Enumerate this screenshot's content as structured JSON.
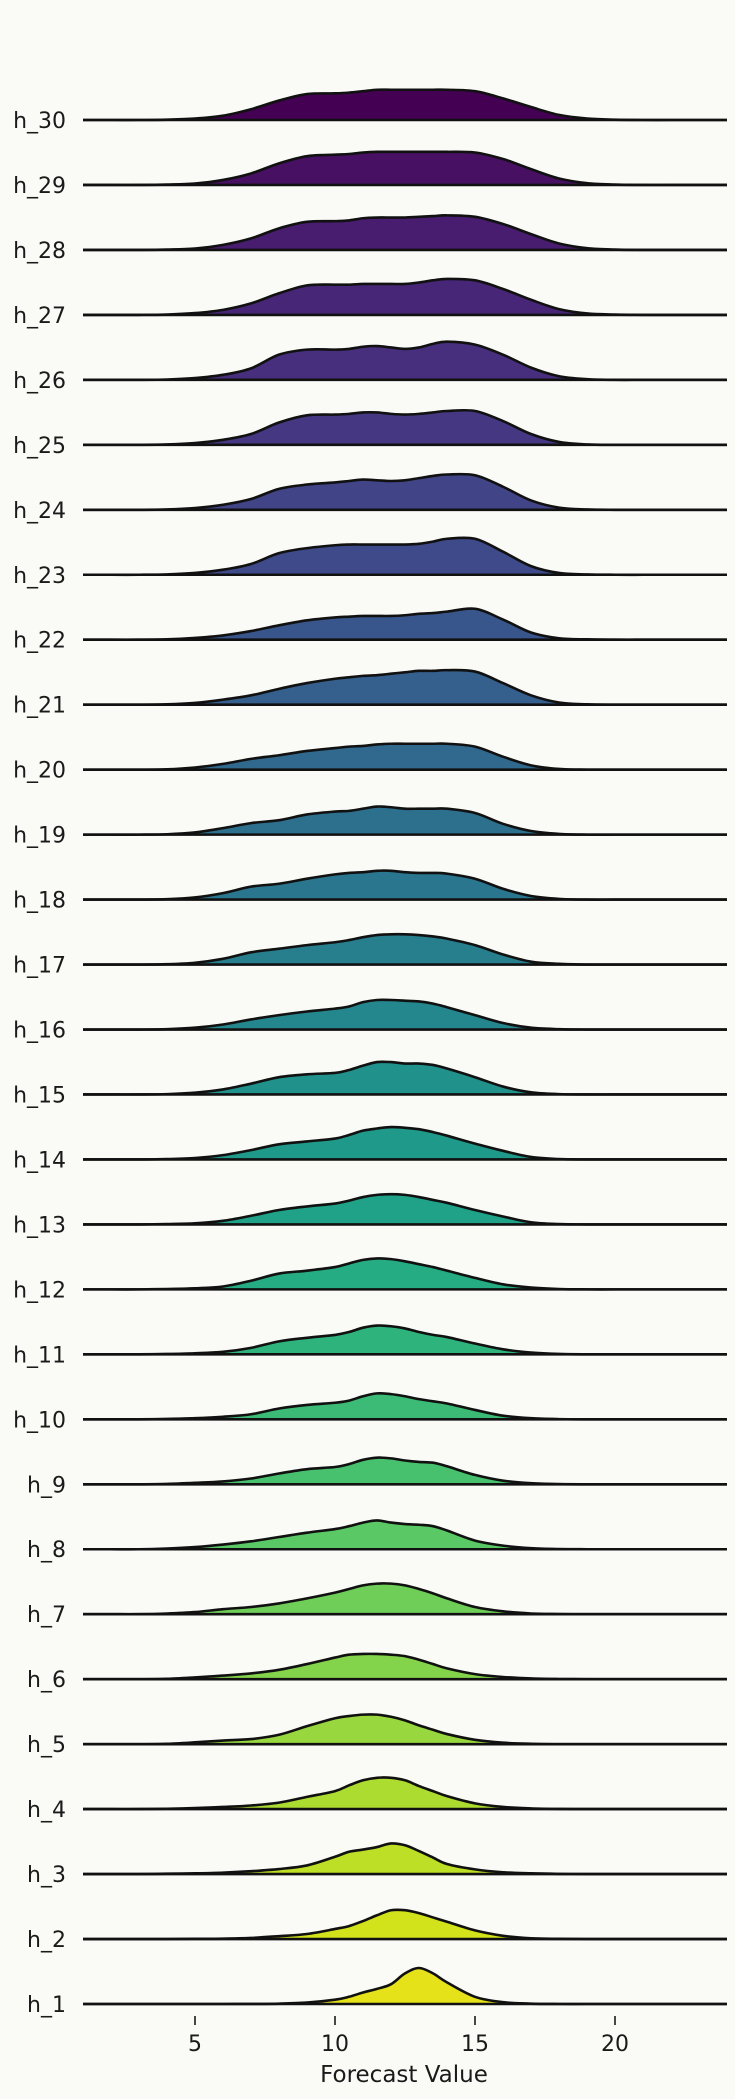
{
  "chart_data": {
    "type": "ridgeline",
    "title": "",
    "xlabel": "Forecast Value",
    "ylabel": "",
    "xlim": [
      1,
      24
    ],
    "x_ticks": [
      5,
      10,
      15,
      20
    ],
    "grid": false,
    "legend": "none",
    "colormap": "viridis",
    "x": [
      1,
      2,
      3,
      4,
      5,
      6,
      7,
      8,
      9,
      10,
      10.5,
      11,
      11.5,
      12,
      12.5,
      13,
      13.5,
      14,
      15,
      16,
      17,
      18,
      19,
      20,
      21,
      22,
      23,
      24
    ],
    "series": [
      {
        "name": "h_1",
        "color": "#e6e21a",
        "values": [
          0,
          0,
          0,
          0,
          0,
          0,
          0.002,
          0.01,
          0.04,
          0.12,
          0.2,
          0.32,
          0.42,
          0.55,
          0.85,
          1.0,
          0.85,
          0.6,
          0.2,
          0.05,
          0.01,
          0,
          0,
          0,
          0,
          0,
          0,
          0
        ]
      },
      {
        "name": "h_2",
        "color": "#d2e21b",
        "values": [
          0,
          0,
          0,
          0,
          0.005,
          0.01,
          0.03,
          0.08,
          0.14,
          0.28,
          0.36,
          0.5,
          0.66,
          0.8,
          0.8,
          0.72,
          0.6,
          0.48,
          0.24,
          0.09,
          0.02,
          0.005,
          0,
          0,
          0,
          0,
          0,
          0
        ]
      },
      {
        "name": "h_3",
        "color": "#bddf26",
        "values": [
          0,
          0,
          0,
          0.01,
          0.02,
          0.04,
          0.08,
          0.14,
          0.24,
          0.48,
          0.62,
          0.68,
          0.75,
          0.85,
          0.8,
          0.64,
          0.46,
          0.28,
          0.13,
          0.05,
          0.02,
          0.005,
          0,
          0,
          0,
          0,
          0,
          0
        ]
      },
      {
        "name": "h_4",
        "color": "#addc30",
        "values": [
          0,
          0,
          0,
          0.01,
          0.03,
          0.06,
          0.1,
          0.18,
          0.34,
          0.5,
          0.66,
          0.8,
          0.87,
          0.87,
          0.8,
          0.64,
          0.5,
          0.36,
          0.16,
          0.06,
          0.02,
          0.005,
          0,
          0,
          0,
          0,
          0,
          0
        ]
      },
      {
        "name": "h_5",
        "color": "#98d83e",
        "values": [
          0,
          0,
          0,
          0.01,
          0.05,
          0.1,
          0.14,
          0.26,
          0.5,
          0.72,
          0.78,
          0.82,
          0.82,
          0.76,
          0.66,
          0.52,
          0.4,
          0.28,
          0.12,
          0.04,
          0.01,
          0,
          0,
          0,
          0,
          0,
          0,
          0
        ]
      },
      {
        "name": "h_6",
        "color": "#84d44b",
        "values": [
          0,
          0,
          0,
          0.01,
          0.05,
          0.1,
          0.16,
          0.26,
          0.42,
          0.6,
          0.68,
          0.7,
          0.7,
          0.68,
          0.64,
          0.54,
          0.42,
          0.3,
          0.14,
          0.06,
          0.02,
          0.005,
          0,
          0,
          0,
          0,
          0,
          0
        ]
      },
      {
        "name": "h_7",
        "color": "#6ece58",
        "values": [
          0,
          0,
          0,
          0.02,
          0.06,
          0.14,
          0.2,
          0.3,
          0.44,
          0.6,
          0.7,
          0.8,
          0.85,
          0.85,
          0.8,
          0.7,
          0.58,
          0.44,
          0.2,
          0.08,
          0.02,
          0.005,
          0,
          0,
          0,
          0,
          0,
          0
        ]
      },
      {
        "name": "h_8",
        "color": "#5ac864",
        "values": [
          0,
          0,
          0,
          0.02,
          0.06,
          0.13,
          0.22,
          0.34,
          0.46,
          0.56,
          0.64,
          0.74,
          0.8,
          0.74,
          0.7,
          0.68,
          0.64,
          0.52,
          0.24,
          0.1,
          0.03,
          0.005,
          0,
          0,
          0,
          0,
          0,
          0
        ]
      },
      {
        "name": "h_9",
        "color": "#48c16e",
        "values": [
          0,
          0,
          0,
          0.01,
          0.04,
          0.08,
          0.16,
          0.3,
          0.42,
          0.48,
          0.56,
          0.68,
          0.74,
          0.72,
          0.66,
          0.62,
          0.6,
          0.5,
          0.26,
          0.1,
          0.03,
          0.005,
          0,
          0,
          0,
          0,
          0,
          0
        ]
      },
      {
        "name": "h_10",
        "color": "#3bbb75",
        "values": [
          0,
          0,
          0,
          0.01,
          0.03,
          0.07,
          0.14,
          0.3,
          0.4,
          0.46,
          0.52,
          0.64,
          0.72,
          0.7,
          0.64,
          0.56,
          0.5,
          0.44,
          0.26,
          0.1,
          0.03,
          0.005,
          0,
          0,
          0,
          0,
          0,
          0
        ]
      },
      {
        "name": "h_11",
        "color": "#2eb37c",
        "values": [
          0,
          0,
          0,
          0.01,
          0.03,
          0.07,
          0.18,
          0.36,
          0.46,
          0.54,
          0.62,
          0.74,
          0.8,
          0.78,
          0.72,
          0.62,
          0.54,
          0.48,
          0.3,
          0.14,
          0.05,
          0.01,
          0,
          0,
          0,
          0,
          0,
          0
        ]
      },
      {
        "name": "h_12",
        "color": "#25ac82",
        "values": [
          0,
          0,
          0,
          0.01,
          0.03,
          0.08,
          0.24,
          0.44,
          0.52,
          0.62,
          0.72,
          0.82,
          0.86,
          0.84,
          0.78,
          0.7,
          0.62,
          0.52,
          0.32,
          0.14,
          0.05,
          0.01,
          0,
          0,
          0,
          0,
          0,
          0
        ]
      },
      {
        "name": "h_13",
        "color": "#1fa287",
        "values": [
          0,
          0,
          0,
          0.01,
          0.03,
          0.1,
          0.24,
          0.4,
          0.5,
          0.58,
          0.66,
          0.76,
          0.82,
          0.84,
          0.82,
          0.76,
          0.68,
          0.6,
          0.4,
          0.22,
          0.06,
          0.01,
          0,
          0,
          0,
          0,
          0,
          0
        ]
      },
      {
        "name": "h_14",
        "color": "#1f9a8a",
        "values": [
          0,
          0,
          0,
          0.01,
          0.04,
          0.12,
          0.26,
          0.42,
          0.5,
          0.58,
          0.68,
          0.8,
          0.86,
          0.9,
          0.88,
          0.84,
          0.76,
          0.66,
          0.44,
          0.24,
          0.07,
          0.01,
          0,
          0,
          0,
          0,
          0,
          0
        ]
      },
      {
        "name": "h_15",
        "color": "#21918c",
        "values": [
          0,
          0,
          0,
          0.01,
          0.05,
          0.14,
          0.3,
          0.48,
          0.56,
          0.6,
          0.68,
          0.8,
          0.9,
          0.9,
          0.86,
          0.86,
          0.82,
          0.72,
          0.48,
          0.22,
          0.06,
          0.01,
          0,
          0,
          0,
          0,
          0,
          0
        ]
      },
      {
        "name": "h_16",
        "color": "#24878e",
        "values": [
          0,
          0,
          0,
          0.01,
          0.05,
          0.14,
          0.28,
          0.4,
          0.5,
          0.58,
          0.64,
          0.76,
          0.82,
          0.82,
          0.8,
          0.78,
          0.72,
          0.62,
          0.4,
          0.18,
          0.05,
          0.01,
          0,
          0,
          0,
          0,
          0,
          0
        ]
      },
      {
        "name": "h_17",
        "color": "#277f8e",
        "values": [
          0,
          0,
          0,
          0.01,
          0.05,
          0.16,
          0.34,
          0.44,
          0.54,
          0.62,
          0.68,
          0.76,
          0.82,
          0.84,
          0.84,
          0.82,
          0.78,
          0.72,
          0.54,
          0.28,
          0.08,
          0.02,
          0,
          0,
          0,
          0,
          0,
          0
        ]
      },
      {
        "name": "h_18",
        "color": "#2a768e",
        "values": [
          0,
          0,
          0,
          0.01,
          0.06,
          0.18,
          0.36,
          0.44,
          0.58,
          0.7,
          0.74,
          0.76,
          0.8,
          0.8,
          0.76,
          0.74,
          0.74,
          0.72,
          0.58,
          0.3,
          0.1,
          0.02,
          0,
          0,
          0,
          0,
          0,
          0
        ]
      },
      {
        "name": "h_19",
        "color": "#2d708e",
        "values": [
          0,
          0,
          0,
          0.01,
          0.06,
          0.18,
          0.32,
          0.4,
          0.56,
          0.64,
          0.66,
          0.72,
          0.78,
          0.76,
          0.72,
          0.72,
          0.72,
          0.72,
          0.6,
          0.3,
          0.1,
          0.02,
          0,
          0,
          0,
          0,
          0,
          0
        ]
      },
      {
        "name": "h_20",
        "color": "#31688e",
        "values": [
          0,
          0,
          0,
          0.01,
          0.06,
          0.16,
          0.3,
          0.4,
          0.52,
          0.6,
          0.64,
          0.66,
          0.7,
          0.72,
          0.72,
          0.72,
          0.72,
          0.72,
          0.64,
          0.36,
          0.12,
          0.02,
          0,
          0,
          0,
          0,
          0,
          0
        ]
      },
      {
        "name": "h_21",
        "color": "#355f8d",
        "values": [
          0,
          0,
          0,
          0.01,
          0.05,
          0.14,
          0.26,
          0.44,
          0.6,
          0.72,
          0.76,
          0.8,
          0.82,
          0.86,
          0.9,
          0.94,
          0.94,
          0.96,
          0.92,
          0.6,
          0.26,
          0.06,
          0.01,
          0,
          0,
          0,
          0,
          0
        ]
      },
      {
        "name": "h_22",
        "color": "#39568c",
        "values": [
          0,
          0,
          0,
          0.01,
          0.05,
          0.12,
          0.24,
          0.4,
          0.54,
          0.62,
          0.64,
          0.66,
          0.66,
          0.66,
          0.68,
          0.72,
          0.74,
          0.78,
          0.86,
          0.56,
          0.2,
          0.04,
          0.01,
          0,
          0,
          0,
          0,
          0
        ]
      },
      {
        "name": "h_23",
        "color": "#3e4a89",
        "values": [
          0,
          0,
          0,
          0.01,
          0.05,
          0.14,
          0.3,
          0.6,
          0.74,
          0.82,
          0.84,
          0.84,
          0.84,
          0.84,
          0.84,
          0.86,
          0.92,
          1.0,
          1.0,
          0.64,
          0.24,
          0.05,
          0.01,
          0,
          0,
          0,
          0,
          0
        ]
      },
      {
        "name": "h_24",
        "color": "#414487",
        "values": [
          0,
          0,
          0,
          0.01,
          0.05,
          0.14,
          0.3,
          0.58,
          0.7,
          0.76,
          0.8,
          0.84,
          0.82,
          0.8,
          0.82,
          0.88,
          0.94,
          0.98,
          0.96,
          0.64,
          0.26,
          0.06,
          0.01,
          0,
          0,
          0,
          0,
          0
        ]
      },
      {
        "name": "h_25",
        "color": "#453781",
        "values": [
          0,
          0,
          0,
          0.01,
          0.05,
          0.14,
          0.3,
          0.62,
          0.82,
          0.84,
          0.86,
          0.9,
          0.9,
          0.86,
          0.84,
          0.86,
          0.9,
          0.94,
          0.94,
          0.66,
          0.3,
          0.08,
          0.01,
          0,
          0,
          0,
          0,
          0
        ]
      },
      {
        "name": "h_26",
        "color": "#472f7d",
        "values": [
          0,
          0,
          0,
          0.01,
          0.05,
          0.14,
          0.32,
          0.7,
          0.84,
          0.84,
          0.86,
          0.92,
          0.94,
          0.9,
          0.86,
          0.9,
          1.0,
          1.06,
          0.98,
          0.7,
          0.34,
          0.1,
          0.02,
          0,
          0,
          0,
          0,
          0
        ]
      },
      {
        "name": "h_27",
        "color": "#482677",
        "values": [
          0,
          0,
          0,
          0.01,
          0.05,
          0.14,
          0.32,
          0.6,
          0.82,
          0.84,
          0.84,
          0.86,
          0.86,
          0.86,
          0.86,
          0.9,
          0.96,
          1.0,
          0.96,
          0.72,
          0.42,
          0.16,
          0.04,
          0.01,
          0,
          0,
          0,
          0
        ]
      },
      {
        "name": "h_28",
        "color": "#481c6e",
        "values": [
          0,
          0,
          0,
          0.01,
          0.04,
          0.14,
          0.32,
          0.6,
          0.78,
          0.8,
          0.82,
          0.88,
          0.9,
          0.9,
          0.9,
          0.92,
          0.94,
          0.96,
          0.92,
          0.72,
          0.44,
          0.18,
          0.05,
          0.01,
          0,
          0,
          0,
          0
        ]
      },
      {
        "name": "h_29",
        "color": "#471063",
        "values": [
          0,
          0,
          0,
          0.01,
          0.04,
          0.14,
          0.32,
          0.6,
          0.8,
          0.84,
          0.86,
          0.9,
          0.92,
          0.92,
          0.92,
          0.92,
          0.92,
          0.92,
          0.9,
          0.72,
          0.44,
          0.18,
          0.05,
          0.01,
          0,
          0,
          0,
          0
        ]
      },
      {
        "name": "h_30",
        "color": "#440154",
        "values": [
          0,
          0,
          0,
          0.01,
          0.04,
          0.12,
          0.3,
          0.54,
          0.72,
          0.74,
          0.76,
          0.8,
          0.84,
          0.84,
          0.84,
          0.84,
          0.84,
          0.84,
          0.8,
          0.6,
          0.36,
          0.14,
          0.04,
          0.01,
          0,
          0,
          0,
          0
        ]
      }
    ]
  }
}
